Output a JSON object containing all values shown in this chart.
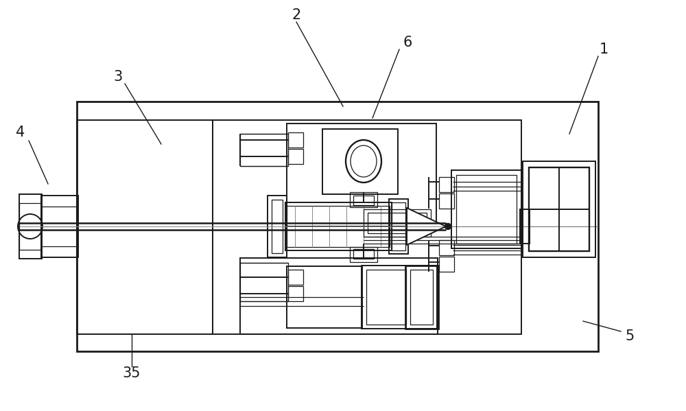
{
  "bg_color": "#ffffff",
  "lc": "#1a1a1a",
  "label_color": "#1a1a1a",
  "label_fontsize": 15,
  "fig_w": 10.0,
  "fig_h": 5.99,
  "dpi": 100
}
